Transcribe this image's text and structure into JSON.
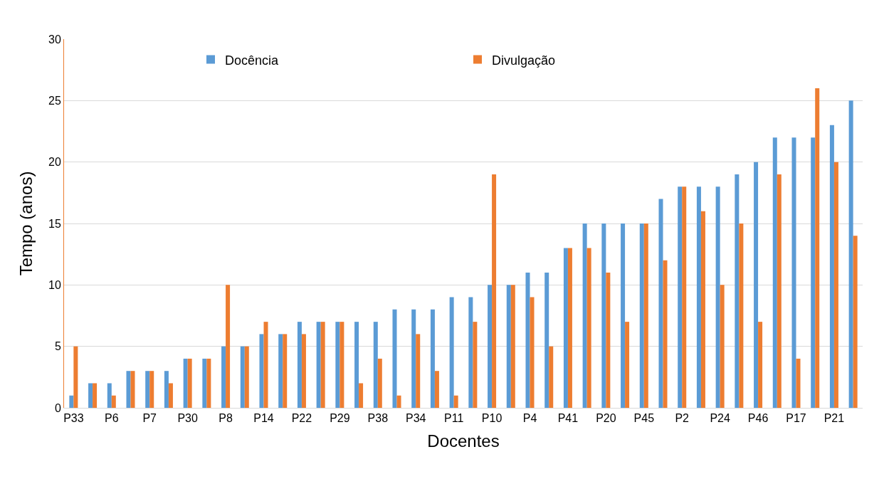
{
  "chart_data": {
    "type": "bar",
    "xlabel": "Docentes",
    "ylabel": "Tempo (anos)",
    "categories": [
      "P33",
      null,
      "P6",
      null,
      "P7",
      null,
      "P30",
      null,
      "P8",
      null,
      "P14",
      null,
      "P22",
      null,
      "P29",
      null,
      "P38",
      null,
      "P34",
      null,
      "P11",
      null,
      "P10",
      null,
      "P4",
      null,
      "P41",
      null,
      "P20",
      null,
      "P45",
      null,
      "P2",
      null,
      "P24",
      null,
      "P46",
      null,
      "P17",
      null,
      "P21",
      null
    ],
    "series": [
      {
        "name": "Docência",
        "color": "#5b9bd5",
        "values": [
          1,
          2,
          2,
          3,
          3,
          3,
          4,
          4,
          5,
          5,
          6,
          6,
          7,
          7,
          7,
          7,
          7,
          8,
          8,
          8,
          9,
          9,
          10,
          10,
          11,
          11,
          13,
          15,
          15,
          15,
          15,
          17,
          18,
          18,
          18,
          19,
          20,
          22,
          22,
          22,
          23,
          25
        ]
      },
      {
        "name": "Divulgação",
        "color": "#ed7d31",
        "values": [
          5,
          2,
          1,
          3,
          3,
          2,
          4,
          4,
          10,
          5,
          7,
          6,
          6,
          7,
          7,
          2,
          4,
          1,
          6,
          3,
          1,
          7,
          19,
          10,
          9,
          5,
          13,
          13,
          11,
          7,
          15,
          12,
          18,
          16,
          10,
          15,
          7,
          19,
          4,
          26,
          20,
          14
        ]
      }
    ],
    "ylim": [
      0,
      30
    ],
    "yticks": [
      0,
      5,
      10,
      15,
      20,
      25,
      30
    ],
    "grid": "y",
    "legend": "top"
  }
}
